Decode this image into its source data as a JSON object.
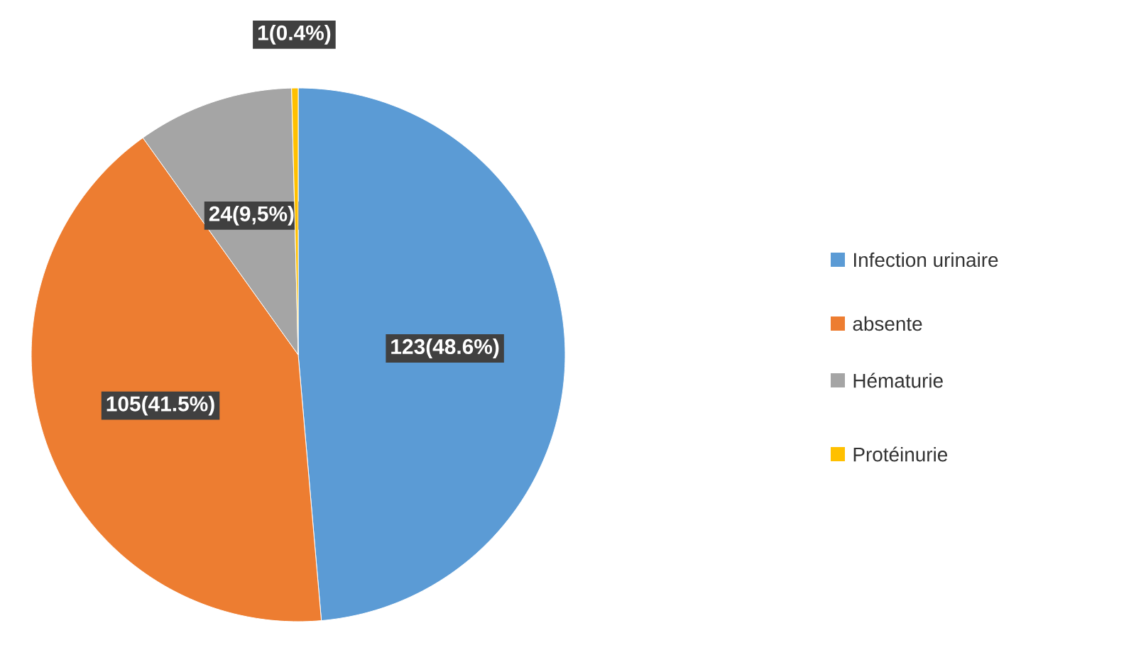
{
  "chart_data": {
    "type": "pie",
    "categories": [
      "Infection urinaire",
      "absente",
      "Hématurie",
      "Protéinurie"
    ],
    "values": [
      123,
      105,
      24,
      1
    ],
    "colors": [
      "#5b9bd5",
      "#ed7d31",
      "#a5a5a5",
      "#ffc000"
    ],
    "value_labels": [
      "123(48.6%)",
      "105(41.5%)",
      "24(9,5%)",
      "1(0.4%)"
    ],
    "legend": "right"
  }
}
